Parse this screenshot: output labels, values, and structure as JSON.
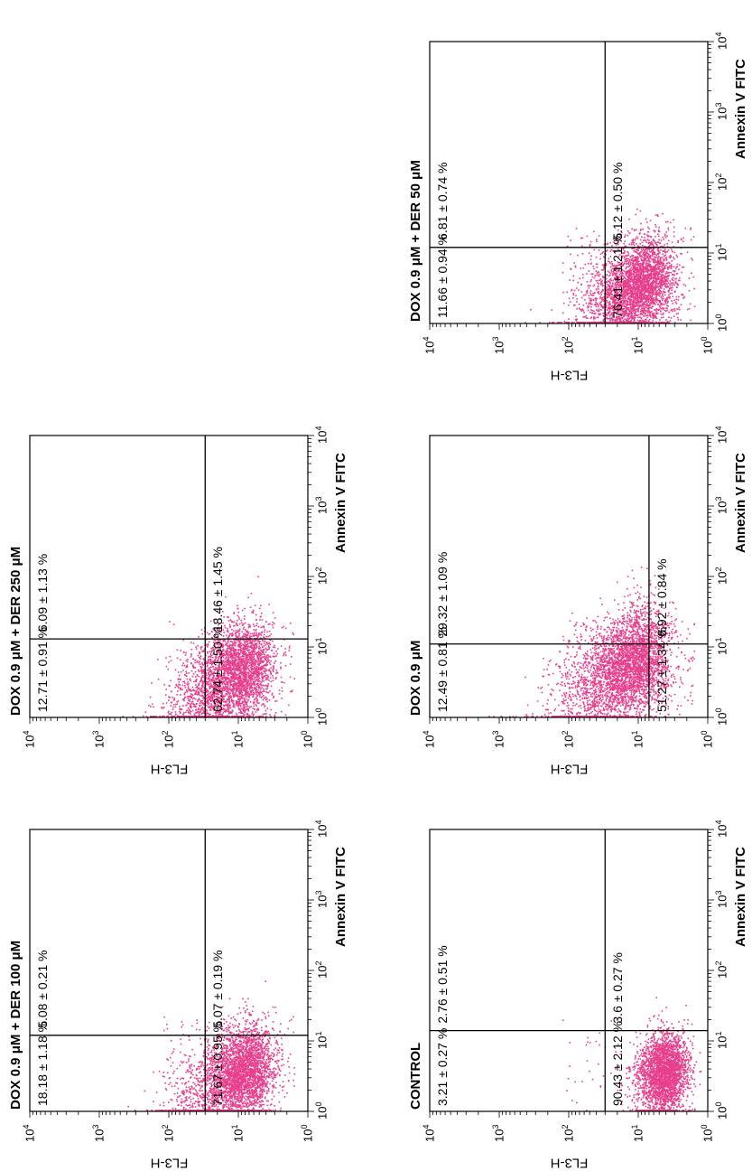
{
  "colors": {
    "dots": "#e83e8c",
    "axes": "#000000"
  },
  "chart_data": [
    {
      "type": "scatter",
      "title": "CONTROL",
      "xlabel": "Annexin V FITC",
      "ylabel": "FL3-H",
      "xscale": "log",
      "yscale": "log",
      "xlim": [
        1,
        10000
      ],
      "ylim": [
        1,
        10000
      ],
      "xticks": [
        "10",
        "10",
        "10",
        "10",
        "10"
      ],
      "xtick_exp": [
        "0",
        "1",
        "2",
        "3",
        "4"
      ],
      "yticks": [
        "10",
        "10",
        "10",
        "10",
        "10"
      ],
      "ytick_exp": [
        "0",
        "1",
        "2",
        "3",
        "4"
      ],
      "gate": {
        "x": 14,
        "y": 30
      },
      "quadrants": {
        "upper_left": "3.21 ± 0.27 %",
        "upper_right": "2.76 ± 0.51 %",
        "lower_left": "90.43 ± 2.12 %",
        "lower_right": "3.6 ± 0.27 %"
      },
      "population": {
        "cx": 4.2,
        "cy": 3.2,
        "spread": 0.28,
        "diag": 0.18,
        "n": 2600,
        "sparse_n": 60
      }
    },
    {
      "type": "scatter",
      "title": "DOX 0.9 μM",
      "xlabel": "Annexin V FITC",
      "ylabel": "FL3-H",
      "xscale": "log",
      "yscale": "log",
      "xlim": [
        1,
        10000
      ],
      "ylim": [
        1,
        10000
      ],
      "xticks": [
        "10",
        "10",
        "10",
        "10",
        "10"
      ],
      "xtick_exp": [
        "0",
        "1",
        "2",
        "3",
        "4"
      ],
      "yticks": [
        "10",
        "10",
        "10",
        "10",
        "10"
      ],
      "ytick_exp": [
        "0",
        "1",
        "2",
        "3",
        "4"
      ],
      "gate": {
        "x": 11,
        "y": 7
      },
      "quadrants": {
        "upper_left": "12.49 ± 0.81 %",
        "upper_right": "29.32 ± 1.09 %",
        "lower_left": "51.27 ± 1.34 %",
        "lower_right": "6.92 ± 0.84 %"
      },
      "population": {
        "cx": 9,
        "cy": 6,
        "spread": 0.36,
        "diag": 0.55,
        "n": 3600,
        "sparse_n": 260
      }
    },
    {
      "type": "scatter",
      "title": "DOX 0.9 μM +  DER 50 μM",
      "xlabel": "Annexin V FITC",
      "ylabel": "FL3-H",
      "xscale": "log",
      "yscale": "log",
      "xlim": [
        1,
        10000
      ],
      "ylim": [
        1,
        10000
      ],
      "xticks": [
        "10",
        "10",
        "10",
        "10",
        "10"
      ],
      "xtick_exp": [
        "0",
        "1",
        "2",
        "3",
        "4"
      ],
      "yticks": [
        "10",
        "10",
        "10",
        "10",
        "10"
      ],
      "ytick_exp": [
        "0",
        "1",
        "2",
        "3",
        "4"
      ],
      "gate": {
        "x": 12,
        "y": 30
      },
      "quadrants": {
        "upper_left": "11.66 ± 0.94 %",
        "upper_right": "6.81 ± 0.74 %",
        "lower_left": "76.41 ± 1.21 %",
        "lower_right": "5.12 ± 0.50 %"
      },
      "population": {
        "cx": 5,
        "cy": 5,
        "spread": 0.32,
        "diag": 0.45,
        "n": 3300,
        "sparse_n": 180
      }
    },
    {
      "type": "scatter",
      "title": "DOX 0.9 μM +  DER 100 μM",
      "xlabel": "Annexin V FITC",
      "ylabel": "FL3-H",
      "xscale": "log",
      "yscale": "log",
      "xlim": [
        1,
        10000
      ],
      "ylim": [
        1,
        10000
      ],
      "xticks": [
        "10",
        "10",
        "10",
        "10",
        "10"
      ],
      "xtick_exp": [
        "0",
        "1",
        "2",
        "3",
        "4"
      ],
      "yticks": [
        "10",
        "10",
        "10",
        "10",
        "10"
      ],
      "ytick_exp": [
        "0",
        "1",
        "2",
        "3",
        "4"
      ],
      "gate": {
        "x": 12,
        "y": 30
      },
      "quadrants": {
        "upper_left": "18.18 ± 1.18 %",
        "upper_right": "5.08 ± 0.21 %",
        "lower_left": "71.67 ± 0.95 %",
        "lower_right": "5.07 ± 0.19 %"
      },
      "population": {
        "cx": 5,
        "cy": 5,
        "spread": 0.32,
        "diag": 0.45,
        "n": 3300,
        "sparse_n": 200
      }
    },
    {
      "type": "scatter",
      "title": "DOX 0.9 μM +  DER 250 μM",
      "xlabel": "Annexin V FITC",
      "ylabel": "FL3-H",
      "xscale": "log",
      "yscale": "log",
      "xlim": [
        1,
        10000
      ],
      "ylim": [
        1,
        10000
      ],
      "xticks": [
        "10",
        "10",
        "10",
        "10",
        "10"
      ],
      "xtick_exp": [
        "0",
        "1",
        "2",
        "3",
        "4"
      ],
      "yticks": [
        "10",
        "10",
        "10",
        "10",
        "10"
      ],
      "ytick_exp": [
        "0",
        "1",
        "2",
        "3",
        "4"
      ],
      "gate": {
        "x": 13,
        "y": 30
      },
      "quadrants": {
        "upper_left": "12.71 ± 0.91 %",
        "upper_right": "6.09 ± 1.13 %",
        "lower_left": "62.74 ± 1.50 %",
        "lower_right": "18.46 ± 1.45 %"
      },
      "population": {
        "cx": 6,
        "cy": 5.5,
        "spread": 0.34,
        "diag": 0.5,
        "n": 3400,
        "sparse_n": 160
      }
    }
  ]
}
